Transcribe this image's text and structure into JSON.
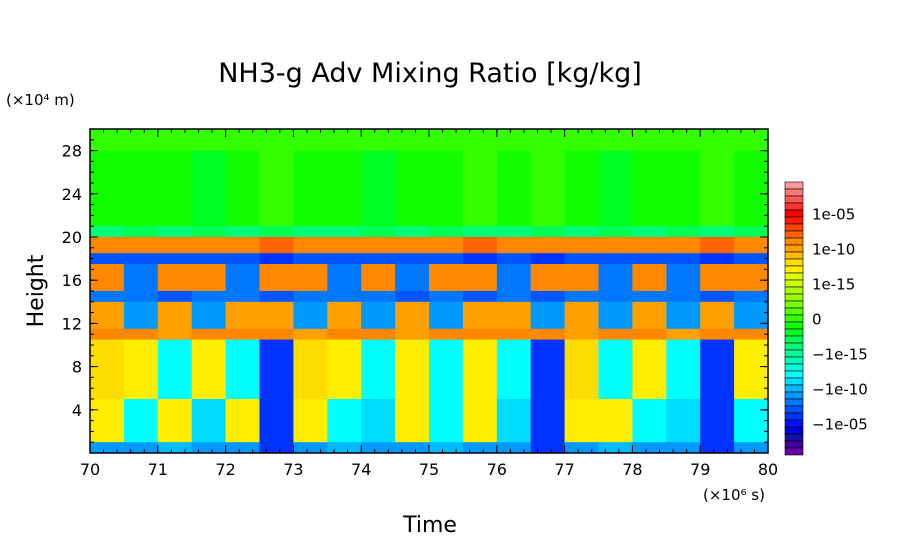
{
  "chart_data": {
    "type": "heatmap",
    "title": "NH3-g Adv Mixing Ratio [kg/kg]",
    "xlabel": "Time",
    "ylabel": "Height",
    "x_unit": "(×10⁶ s)",
    "y_unit": "(×10⁴ m)",
    "xlim": [
      70,
      80
    ],
    "ylim": [
      0,
      30
    ],
    "x_ticks": [
      "70",
      "71",
      "72",
      "73",
      "74",
      "75",
      "76",
      "77",
      "78",
      "79",
      "80"
    ],
    "y_ticks": [
      "4",
      "8",
      "12",
      "16",
      "20",
      "24",
      "28"
    ],
    "colorbar": {
      "colors_top_to_bottom": [
        "#ff9999",
        "#ff7777",
        "#ff5555",
        "#ff3333",
        "#ff0000",
        "#ff1a00",
        "#ff4400",
        "#ff6600",
        "#ff8800",
        "#ffa000",
        "#ffbb00",
        "#ffdd00",
        "#ffee00",
        "#ddff00",
        "#ccff00",
        "#aaff00",
        "#99ff00",
        "#77ff00",
        "#55ff00",
        "#33ff00",
        "#11ff00",
        "#00ff22",
        "#00ff55",
        "#00ff77",
        "#00ff99",
        "#00ffbb",
        "#00ffdd",
        "#00ffff",
        "#00ddff",
        "#00bbff",
        "#0099ff",
        "#0077ff",
        "#0055ff",
        "#0033ff",
        "#0011ff",
        "#0000dd",
        "#1111aa",
        "#440099",
        "#6600aa"
      ],
      "labels": [
        {
          "text": "1e-05",
          "level": 4
        },
        {
          "text": "1e-10",
          "level": 9
        },
        {
          "text": "1e-15",
          "level": 14
        },
        {
          "text": "0",
          "level": 19
        },
        {
          "text": "−1e-15",
          "level": 24
        },
        {
          "text": "−1e-10",
          "level": 29
        },
        {
          "text": "−1e-05",
          "level": 34
        }
      ]
    },
    "time_bins": [
      70,
      70.5,
      71,
      71.5,
      72,
      72.5,
      73,
      73.5,
      74,
      74.5,
      75,
      75.5,
      76,
      76.5,
      77,
      77.5,
      78,
      78.5,
      79,
      79.5,
      80
    ],
    "rows": [
      {
        "height": [
          28,
          30
        ],
        "levels": [
          19,
          19,
          19,
          19,
          19,
          19,
          19,
          19,
          19,
          19,
          19,
          19,
          19,
          19,
          19,
          19,
          19,
          19,
          19,
          19
        ]
      },
      {
        "height": [
          21,
          28
        ],
        "levels": [
          20,
          20,
          20,
          21,
          20,
          19,
          20,
          20,
          21,
          20,
          20,
          19,
          20,
          19,
          20,
          21,
          20,
          20,
          19,
          20
        ]
      },
      {
        "height": [
          20,
          21
        ],
        "levels": [
          23,
          22,
          23,
          22,
          23,
          22,
          23,
          23,
          22,
          23,
          22,
          23,
          23,
          22,
          23,
          22,
          23,
          22,
          23,
          22
        ]
      },
      {
        "height": [
          18.5,
          20
        ],
        "levels": [
          8,
          8,
          8,
          8,
          8,
          7,
          8,
          8,
          8,
          8,
          8,
          7,
          8,
          8,
          8,
          8,
          8,
          8,
          7,
          8
        ]
      },
      {
        "height": [
          17.5,
          18.5
        ],
        "levels": [
          32,
          32,
          32,
          32,
          32,
          33,
          32,
          32,
          32,
          32,
          32,
          33,
          32,
          33,
          32,
          32,
          32,
          32,
          33,
          32
        ]
      },
      {
        "height": [
          15,
          17.5
        ],
        "levels": [
          8,
          31,
          8,
          8,
          31,
          8,
          8,
          31,
          8,
          31,
          8,
          8,
          31,
          8,
          8,
          31,
          8,
          31,
          8,
          8
        ]
      },
      {
        "height": [
          14,
          15
        ],
        "levels": [
          31,
          31,
          32,
          31,
          31,
          32,
          31,
          31,
          31,
          32,
          31,
          32,
          31,
          32,
          31,
          31,
          31,
          31,
          32,
          31
        ]
      },
      {
        "height": [
          11.5,
          14
        ],
        "levels": [
          9,
          30,
          9,
          30,
          9,
          9,
          30,
          9,
          30,
          9,
          30,
          9,
          9,
          30,
          9,
          30,
          9,
          30,
          9,
          30
        ]
      },
      {
        "height": [
          10.5,
          11.5
        ],
        "levels": [
          8,
          8,
          9,
          8,
          8,
          8,
          9,
          8,
          8,
          9,
          8,
          8,
          8,
          8,
          9,
          8,
          8,
          9,
          8,
          8
        ]
      },
      {
        "height": [
          5,
          10.5
        ],
        "levels": [
          11,
          12,
          27,
          12,
          27,
          33,
          11,
          12,
          27,
          12,
          27,
          12,
          27,
          33,
          11,
          27,
          12,
          27,
          33,
          12
        ]
      },
      {
        "height": [
          1,
          5
        ],
        "levels": [
          12,
          27,
          12,
          28,
          12,
          33,
          12,
          27,
          28,
          12,
          27,
          12,
          28,
          33,
          12,
          12,
          27,
          28,
          33,
          27
        ]
      },
      {
        "height": [
          0,
          1
        ],
        "levels": [
          30,
          30,
          29,
          30,
          30,
          33,
          30,
          29,
          30,
          30,
          29,
          30,
          30,
          33,
          30,
          29,
          30,
          30,
          33,
          30
        ]
      }
    ]
  }
}
